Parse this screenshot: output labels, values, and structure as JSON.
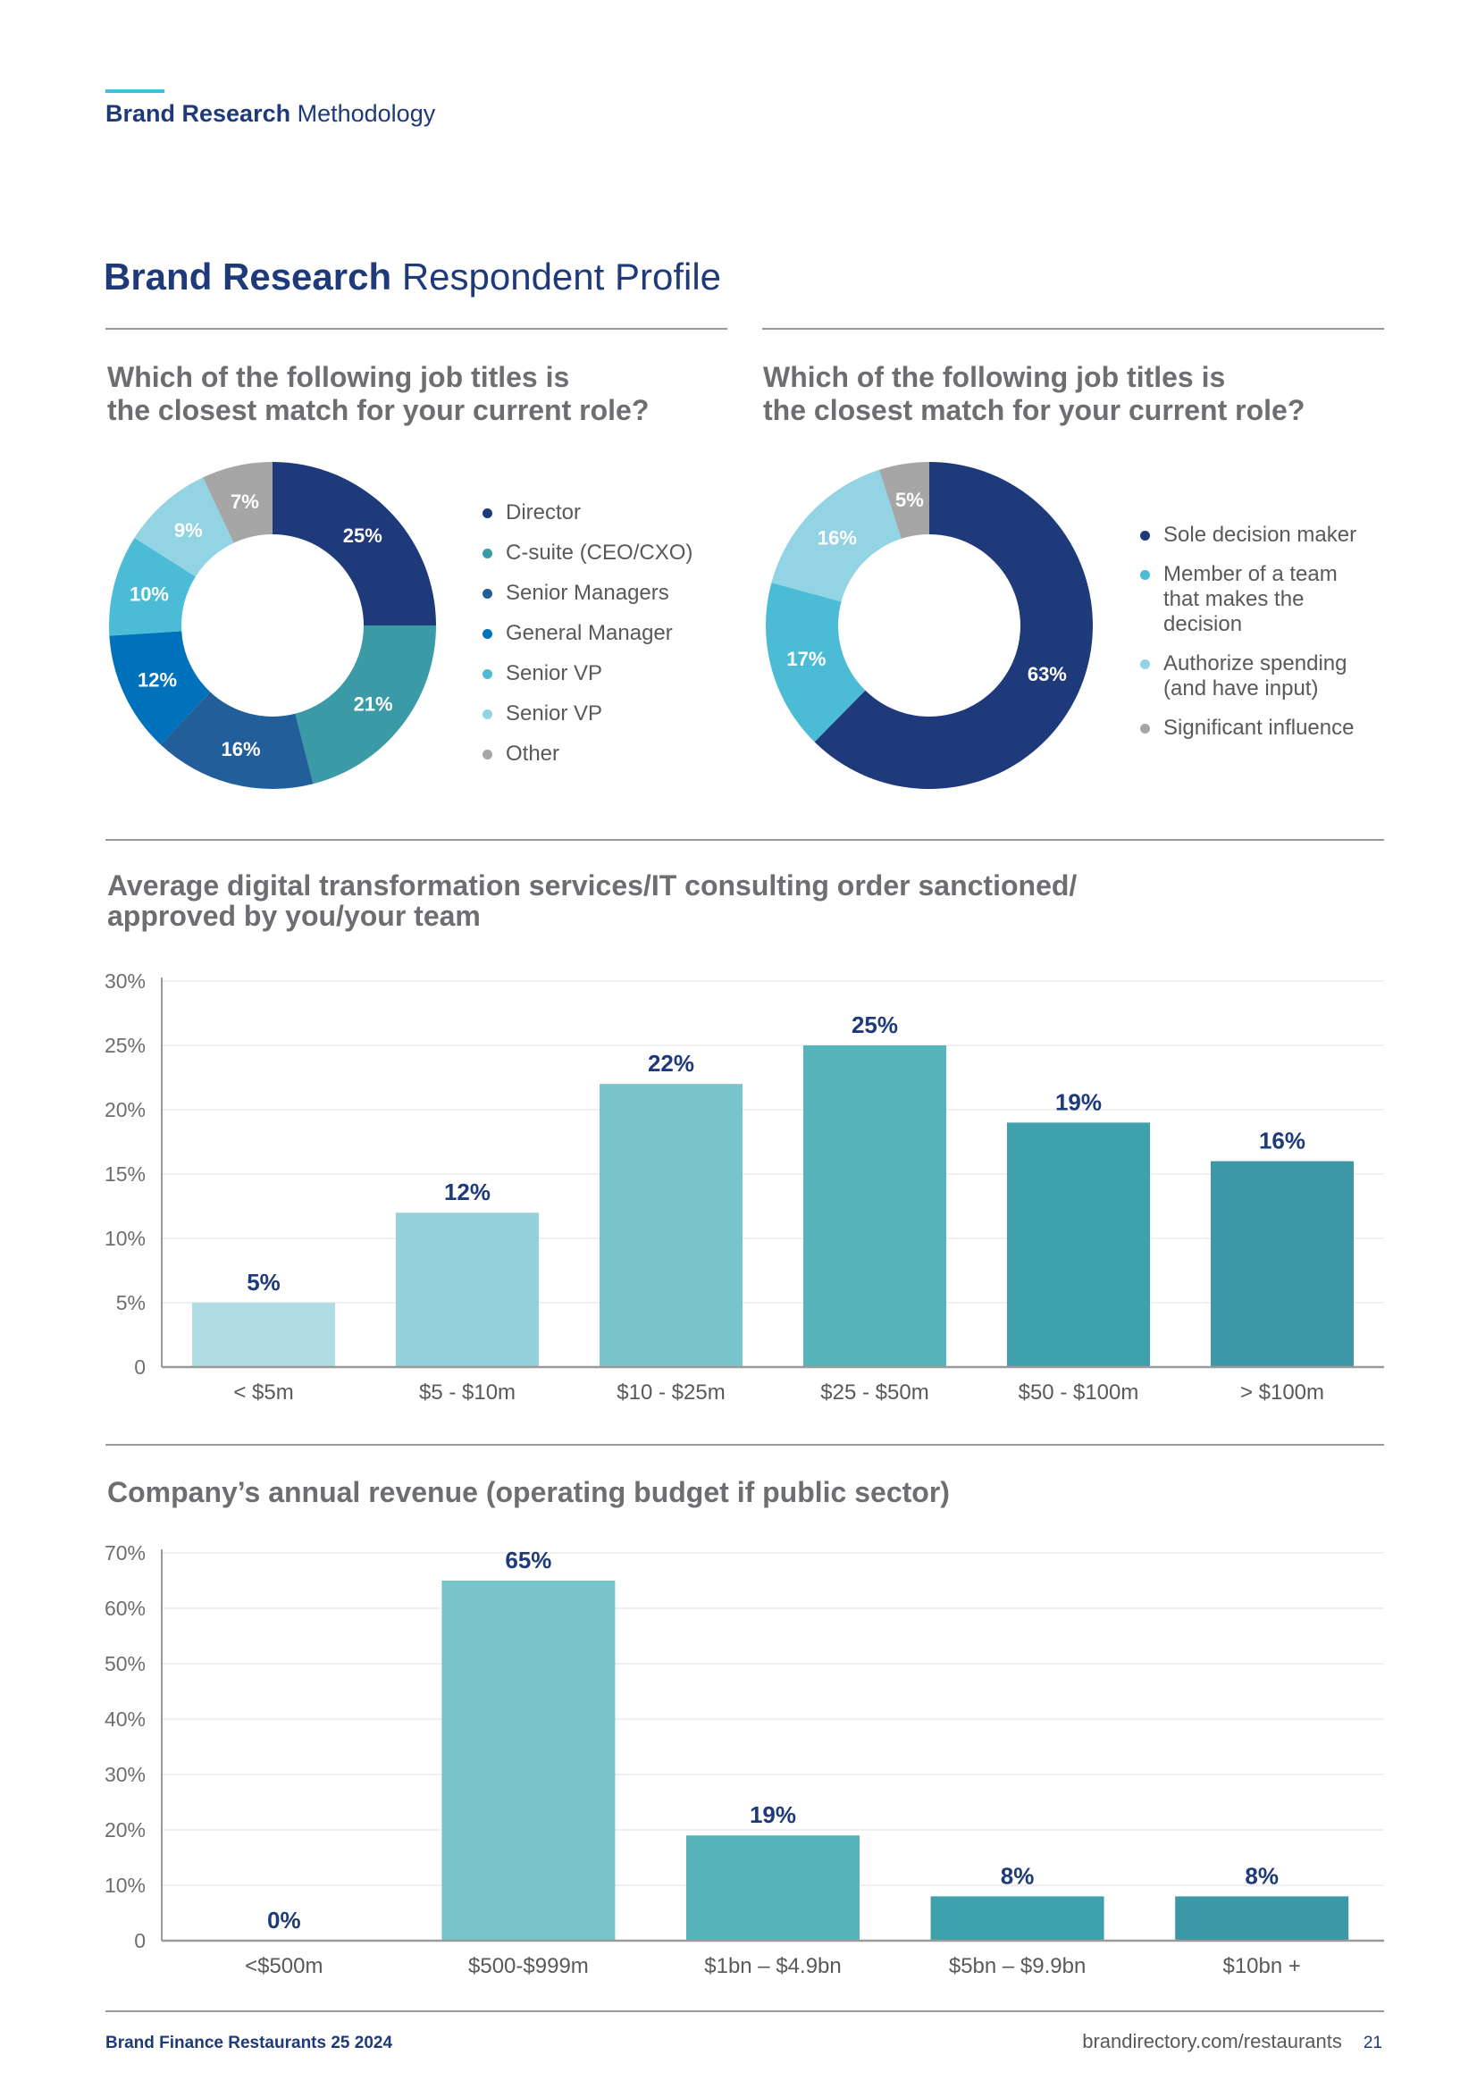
{
  "header": {
    "title_bold": "Brand Research",
    "title_rest": "Methodology"
  },
  "page_title": {
    "bold": "Brand Research",
    "rest": "Respondent Profile"
  },
  "footer": {
    "publication": "Brand Finance Restaurants 25 2024",
    "url": "brandirectory.com/restaurants",
    "page_number": "21"
  },
  "colors": {
    "navy": "#1e3a7a",
    "teal": "#3a9aa6",
    "blue": "#0072bc",
    "cyan": "#4cbcd6",
    "light_cyan": "#8fd3e4",
    "grey": "#a6a6a6"
  },
  "chart_data": [
    {
      "type": "pie",
      "donut": true,
      "title": "Which of the following job titles is the closest match for your current role?",
      "title_lines": [
        "Which of the following job titles is",
        "the closest match for your current role?"
      ],
      "slices": [
        {
          "label": "Director",
          "value": 25,
          "display": "25%",
          "color": "#1e3a7a"
        },
        {
          "label": "C-suite (CEO/CXO)",
          "value": 21,
          "display": "21%",
          "color": "#3a9aa6"
        },
        {
          "label": "Senior Managers",
          "value": 16,
          "display": "16%",
          "color": "#215e9a"
        },
        {
          "label": "General Manager",
          "value": 12,
          "display": "12%",
          "color": "#0072bc"
        },
        {
          "label": "Senior VP",
          "value": 10,
          "display": "10%",
          "color": "#4cbcd6"
        },
        {
          "label": "Senior VP",
          "value": 9,
          "display": "9%",
          "color": "#92d4e4"
        },
        {
          "label": "Other",
          "value": 7,
          "display": "7%",
          "color": "#a6a6a6"
        }
      ]
    },
    {
      "type": "pie",
      "donut": true,
      "title": "Which of the following job titles is the closest match for your current role?",
      "title_lines": [
        "Which of the following job titles is",
        "the closest match for your current role?"
      ],
      "slices": [
        {
          "label": "Sole decision maker",
          "label_lines": [
            "Sole decision maker"
          ],
          "value": 63,
          "display": "63%",
          "color": "#1e3a7a"
        },
        {
          "label": "Member of a team that makes the decision",
          "label_lines": [
            "Member of a team",
            "that makes the",
            "decision"
          ],
          "value": 17,
          "display": "17%",
          "color": "#4cbcd6"
        },
        {
          "label": "Authorize spending (and have input)",
          "label_lines": [
            "Authorize spending",
            "(and have input)"
          ],
          "value": 16,
          "display": "16%",
          "color": "#92d4e4"
        },
        {
          "label": "Significant influence",
          "label_lines": [
            "Significant influence"
          ],
          "value": 5,
          "display": "5%",
          "color": "#a6a6a6"
        }
      ]
    },
    {
      "type": "bar",
      "title": "Average digital transformation services/IT consulting order sanctioned/ approved by you/your team",
      "title_lines": [
        "Average digital transformation services/IT consulting order sanctioned/",
        "approved by you/your team"
      ],
      "categories": [
        "< $5m",
        "$5 - $10m",
        "$10 - $25m",
        "$25 - $50m",
        "$50 - $100m",
        "> $100m"
      ],
      "values": [
        5,
        12,
        22,
        25,
        19,
        16
      ],
      "value_labels": [
        "5%",
        "12%",
        "22%",
        "25%",
        "19%",
        "16%"
      ],
      "bar_colors": [
        "#b0dde3",
        "#95d1da",
        "#77c5cb",
        "#56b4bb",
        "#3fa1ab",
        "#3c98a6"
      ],
      "yticks": [
        0,
        5,
        10,
        15,
        20,
        25,
        30
      ],
      "ytick_labels": [
        "0",
        "5%",
        "10%",
        "15%",
        "20%",
        "25%",
        "30%"
      ],
      "ylim": [
        0,
        30
      ],
      "xlabel": "",
      "ylabel": "",
      "grid": true
    },
    {
      "type": "bar",
      "title": "Company’s annual revenue (operating budget if public sector)",
      "title_lines": [
        "Company’s annual revenue (operating budget if public sector)"
      ],
      "categories": [
        "<$500m",
        "$500-$999m",
        "$1bn – $4.9bn",
        "$5bn – $9.9bn",
        "$10bn +"
      ],
      "values": [
        0,
        65,
        19,
        8,
        8
      ],
      "value_labels": [
        "0%",
        "65%",
        "19%",
        "8%",
        "8%"
      ],
      "bar_colors": [
        "#77c5cb",
        "#77c5cb",
        "#56b4bb",
        "#3fa1ab",
        "#3c98a6"
      ],
      "yticks": [
        0,
        10,
        20,
        30,
        40,
        50,
        60,
        70
      ],
      "ytick_labels": [
        "0",
        "10%",
        "20%",
        "30%",
        "40%",
        "50%",
        "60%",
        "70%"
      ],
      "ylim": [
        0,
        70
      ],
      "xlabel": "",
      "ylabel": "",
      "grid": true
    }
  ]
}
